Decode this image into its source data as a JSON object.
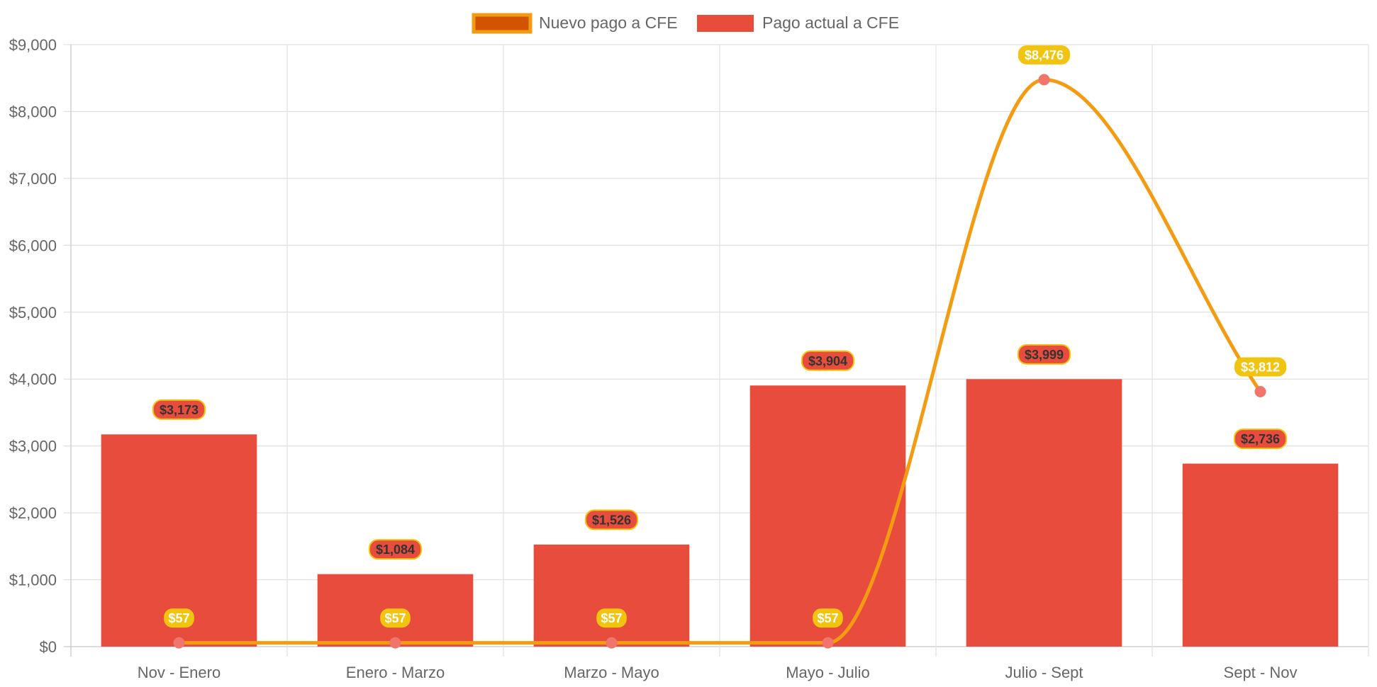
{
  "chart_data": {
    "type": "bar",
    "categories": [
      "Nov - Enero",
      "Enero - Marzo",
      "Marzo - Mayo",
      "Mayo - Julio",
      "Julio - Sept",
      "Sept - Nov"
    ],
    "series": [
      {
        "name": "Nuevo pago a CFE",
        "kind": "line",
        "values": [
          57,
          57,
          57,
          57,
          8476,
          3812
        ],
        "labels": [
          "$57",
          "$57",
          "$57",
          "$57",
          "$8,476",
          "$3,812"
        ],
        "color": "#f39c12",
        "fill": "#d35400",
        "point_color": "#f1756b",
        "label_bg": "#f1c40f",
        "label_text_color": "#ffffff"
      },
      {
        "name": "Pago actual a CFE",
        "kind": "bar",
        "values": [
          3173,
          1084,
          1526,
          3904,
          3999,
          2736
        ],
        "labels": [
          "$3,173",
          "$1,084",
          "$1,526",
          "$3,904",
          "$3,999",
          "$2,736"
        ],
        "color": "#e74c3c",
        "label_bg": "#e74c3c",
        "label_border": "#f1c40f",
        "label_text_color": "#333333"
      }
    ],
    "y_ticks": [
      "$0",
      "$1,000",
      "$2,000",
      "$3,000",
      "$4,000",
      "$5,000",
      "$6,000",
      "$7,000",
      "$8,000",
      "$9,000"
    ],
    "ylim": [
      0,
      9000
    ],
    "grid": true,
    "legend_position": "top-center",
    "title": "",
    "xlabel": "",
    "ylabel": ""
  }
}
